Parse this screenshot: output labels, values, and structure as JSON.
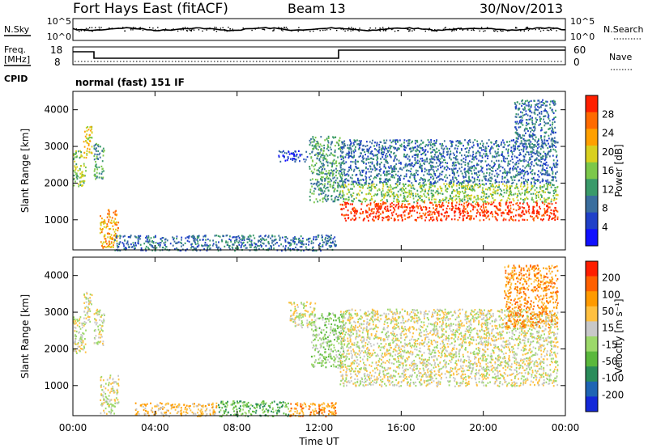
{
  "header": {
    "station": "Fort Hays East (fitACF)",
    "beam": "Beam 13",
    "date": "30/Nov/2013"
  },
  "noise_panel": {
    "left_label": "N.Sky",
    "right_label": "N.Search",
    "left_ticks": [
      "10^5",
      "10^0"
    ],
    "right_ticks": [
      "10^5",
      "10^0"
    ]
  },
  "freq_panel": {
    "left_label_1": "Freq.",
    "left_label_2": "[MHz]",
    "left_ticks": [
      "18",
      "8"
    ],
    "right_label": "Nave",
    "right_ticks": [
      "60",
      "0"
    ],
    "cpid_label": "CPID",
    "cpid_text": "normal (fast) 151 IF"
  },
  "power_panel": {
    "ylabel": "Slant Range [km]",
    "yticks": [
      "1000",
      "2000",
      "3000",
      "4000"
    ],
    "colorbar_label": "Power [dB]",
    "colorbar_ticks": [
      "4",
      "8",
      "12",
      "16",
      "20",
      "24",
      "28"
    ],
    "colors": [
      "#1010ff",
      "#2040c8",
      "#3a6e9e",
      "#3a9a6a",
      "#7cc84a",
      "#d8d020",
      "#ffa000",
      "#ff6a00",
      "#ff2000"
    ]
  },
  "velocity_panel": {
    "ylabel": "Slant Range [km]",
    "yticks": [
      "1000",
      "2000",
      "3000",
      "4000"
    ],
    "colorbar_label": "Velocity [m s⁻¹]",
    "colorbar_ticks": [
      "200",
      "100",
      "50",
      "15",
      "-15",
      "-50",
      "-100",
      "-200"
    ],
    "colors": [
      "#1428d8",
      "#1e64b4",
      "#2a8c5a",
      "#5ab83c",
      "#9cd86a",
      "#c8c8c8",
      "#ffc040",
      "#ff9a00",
      "#ff6000",
      "#ff1e00"
    ]
  },
  "time_axis": {
    "xlabel": "Time UT",
    "ticks": [
      "00:00",
      "04:00",
      "08:00",
      "12:00",
      "16:00",
      "20:00",
      "00:00"
    ]
  },
  "chart_data": {
    "type": "heatmap",
    "x_range_hours": [
      0,
      24
    ],
    "y_range_km": [
      180,
      4500
    ],
    "power_regions": [
      {
        "t0": 0.0,
        "t1": 0.6,
        "r0": 1900,
        "r1": 2900,
        "level": 4
      },
      {
        "t0": 0.5,
        "t1": 0.9,
        "r0": 2700,
        "r1": 3650,
        "level": 5
      },
      {
        "t0": 1.0,
        "t1": 1.5,
        "r0": 2100,
        "r1": 3100,
        "level": 3
      },
      {
        "t0": 1.3,
        "t1": 2.2,
        "r0": 250,
        "r1": 1300,
        "level": 6
      },
      {
        "t0": 2.0,
        "t1": 12.8,
        "r0": 180,
        "r1": 600,
        "level": 2
      },
      {
        "t0": 10.0,
        "t1": 11.4,
        "r0": 2600,
        "r1": 2900,
        "level": 1
      },
      {
        "t0": 11.5,
        "t1": 13.2,
        "r0": 1500,
        "r1": 3300,
        "level": 3
      },
      {
        "t0": 13.0,
        "t1": 23.6,
        "r0": 2000,
        "r1": 3200,
        "level": 2
      },
      {
        "t0": 13.0,
        "t1": 23.6,
        "r0": 1500,
        "r1": 2000,
        "level": 4
      },
      {
        "t0": 13.0,
        "t1": 23.6,
        "r0": 1000,
        "r1": 1500,
        "level": 8
      },
      {
        "t0": 21.5,
        "t1": 23.5,
        "r0": 3000,
        "r1": 4300,
        "level": 2
      }
    ],
    "velocity_regions": [
      {
        "t0": 0.0,
        "t1": 0.6,
        "r0": 1900,
        "r1": 2900,
        "level": 5
      },
      {
        "t0": 0.5,
        "t1": 0.9,
        "r0": 2700,
        "r1": 3650,
        "level": 5
      },
      {
        "t0": 1.0,
        "t1": 1.5,
        "r0": 2100,
        "r1": 3100,
        "level": 5
      },
      {
        "t0": 1.3,
        "t1": 2.2,
        "r0": 250,
        "r1": 1300,
        "level": 5
      },
      {
        "t0": 3.0,
        "t1": 7.0,
        "r0": 180,
        "r1": 550,
        "level": 6
      },
      {
        "t0": 7.0,
        "t1": 10.5,
        "r0": 180,
        "r1": 600,
        "level": 3
      },
      {
        "t0": 10.5,
        "t1": 12.8,
        "r0": 180,
        "r1": 550,
        "level": 7
      },
      {
        "t0": 10.5,
        "t1": 11.8,
        "r0": 2600,
        "r1": 3300,
        "level": 5
      },
      {
        "t0": 11.6,
        "t1": 13.2,
        "r0": 1500,
        "r1": 3000,
        "level": 4
      },
      {
        "t0": 13.0,
        "t1": 23.6,
        "r0": 1000,
        "r1": 3100,
        "level": 5
      },
      {
        "t0": 21.0,
        "t1": 23.6,
        "r0": 2600,
        "r1": 4300,
        "level": 7
      }
    ]
  }
}
